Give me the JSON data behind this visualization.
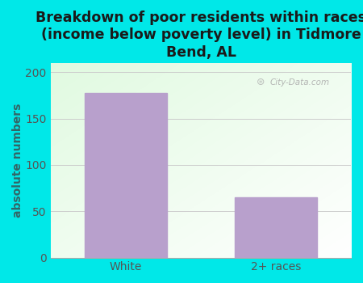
{
  "categories": [
    "White",
    "2+ races"
  ],
  "values": [
    178,
    65
  ],
  "bar_color": "#b8a0cc",
  "title": "Breakdown of poor residents within races\n(income below poverty level) in Tidmore\nBend, AL",
  "ylabel": "absolute numbers",
  "ylim": [
    0,
    210
  ],
  "yticks": [
    0,
    50,
    100,
    150,
    200
  ],
  "background_color": "#00e8e8",
  "title_fontsize": 12.5,
  "tick_fontsize": 10,
  "ylabel_fontsize": 10,
  "ylabel_color": "#336666",
  "tick_color": "#555555",
  "title_color": "#1a1a1a",
  "watermark_text": "City-Data.com",
  "bar_width": 0.55,
  "grid_color": "#cccccc"
}
